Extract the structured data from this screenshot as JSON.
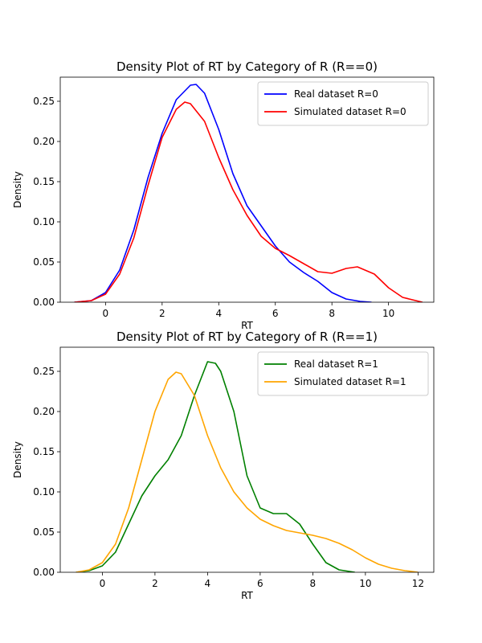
{
  "chart_data": [
    {
      "type": "line",
      "title": "Density Plot of RT by Category of R (R==0)",
      "xlabel": "RT",
      "ylabel": "Density",
      "xlim": [
        -1.6,
        11.6
      ],
      "ylim": [
        0,
        0.28
      ],
      "xticks": [
        0,
        2,
        4,
        6,
        8,
        10
      ],
      "xtick_labels": [
        "0",
        "2",
        "4",
        "6",
        "8",
        "10"
      ],
      "yticks": [
        0,
        0.05,
        0.1,
        0.15,
        0.2,
        0.25
      ],
      "ytick_labels": [
        "0.00",
        "0.05",
        "0.10",
        "0.15",
        "0.20",
        "0.25"
      ],
      "legend_position": "upper right",
      "grid": false,
      "series": [
        {
          "name": "Real dataset R=0",
          "color": "#0000ff",
          "x": [
            -1.1,
            -0.5,
            0,
            0.5,
            1,
            1.5,
            2,
            2.5,
            3,
            3.2,
            3.5,
            4,
            4.5,
            5,
            5.5,
            6,
            6.5,
            7,
            7.5,
            8,
            8.5,
            9,
            9.4
          ],
          "y": [
            0,
            0.002,
            0.012,
            0.04,
            0.09,
            0.155,
            0.21,
            0.252,
            0.27,
            0.271,
            0.26,
            0.215,
            0.16,
            0.12,
            0.095,
            0.07,
            0.05,
            0.037,
            0.026,
            0.012,
            0.004,
            0.001,
            0
          ]
        },
        {
          "name": "Simulated dataset R=0",
          "color": "#ff0000",
          "x": [
            -1.1,
            -0.5,
            0,
            0.5,
            1,
            1.5,
            2,
            2.5,
            2.8,
            3,
            3.5,
            4,
            4.5,
            5,
            5.5,
            6,
            6.5,
            7,
            7.5,
            8,
            8.5,
            8.9,
            9.5,
            10,
            10.5,
            11.2
          ],
          "y": [
            0,
            0.002,
            0.01,
            0.035,
            0.08,
            0.145,
            0.205,
            0.24,
            0.249,
            0.247,
            0.225,
            0.18,
            0.14,
            0.108,
            0.082,
            0.067,
            0.058,
            0.048,
            0.038,
            0.036,
            0.042,
            0.044,
            0.035,
            0.018,
            0.006,
            0
          ]
        }
      ]
    },
    {
      "type": "line",
      "title": "Density Plot of RT by Category of R (R==1)",
      "xlabel": "RT",
      "ylabel": "Density",
      "xlim": [
        -1.6,
        12.6
      ],
      "ylim": [
        0,
        0.28
      ],
      "xticks": [
        0,
        2,
        4,
        6,
        8,
        10,
        12
      ],
      "xtick_labels": [
        "0",
        "2",
        "4",
        "6",
        "8",
        "10",
        "12"
      ],
      "yticks": [
        0,
        0.05,
        0.1,
        0.15,
        0.2,
        0.25
      ],
      "ytick_labels": [
        "0.00",
        "0.05",
        "0.10",
        "0.15",
        "0.20",
        "0.25"
      ],
      "legend_position": "upper right",
      "grid": false,
      "series": [
        {
          "name": "Real dataset R=1",
          "color": "#008000",
          "x": [
            -1.0,
            -0.5,
            0,
            0.5,
            1,
            1.5,
            2,
            2.5,
            3,
            3.5,
            4,
            4.3,
            4.5,
            5,
            5.5,
            6,
            6.5,
            7,
            7.5,
            8,
            8.5,
            9,
            9.6
          ],
          "y": [
            0,
            0.002,
            0.008,
            0.025,
            0.06,
            0.095,
            0.12,
            0.14,
            0.17,
            0.22,
            0.262,
            0.26,
            0.25,
            0.2,
            0.12,
            0.08,
            0.073,
            0.073,
            0.06,
            0.035,
            0.012,
            0.003,
            0
          ]
        },
        {
          "name": "Simulated dataset R=1",
          "color": "#ffa500",
          "x": [
            -1.0,
            -0.5,
            0,
            0.5,
            1,
            1.5,
            2,
            2.5,
            2.8,
            3,
            3.5,
            4,
            4.5,
            5,
            5.5,
            6,
            6.5,
            7,
            7.5,
            8,
            8.5,
            9,
            9.5,
            10,
            10.5,
            11,
            11.5,
            12
          ],
          "y": [
            0,
            0.003,
            0.012,
            0.035,
            0.08,
            0.14,
            0.2,
            0.24,
            0.249,
            0.247,
            0.22,
            0.17,
            0.13,
            0.1,
            0.08,
            0.066,
            0.058,
            0.052,
            0.049,
            0.046,
            0.042,
            0.036,
            0.028,
            0.018,
            0.01,
            0.005,
            0.002,
            0
          ]
        }
      ]
    }
  ]
}
